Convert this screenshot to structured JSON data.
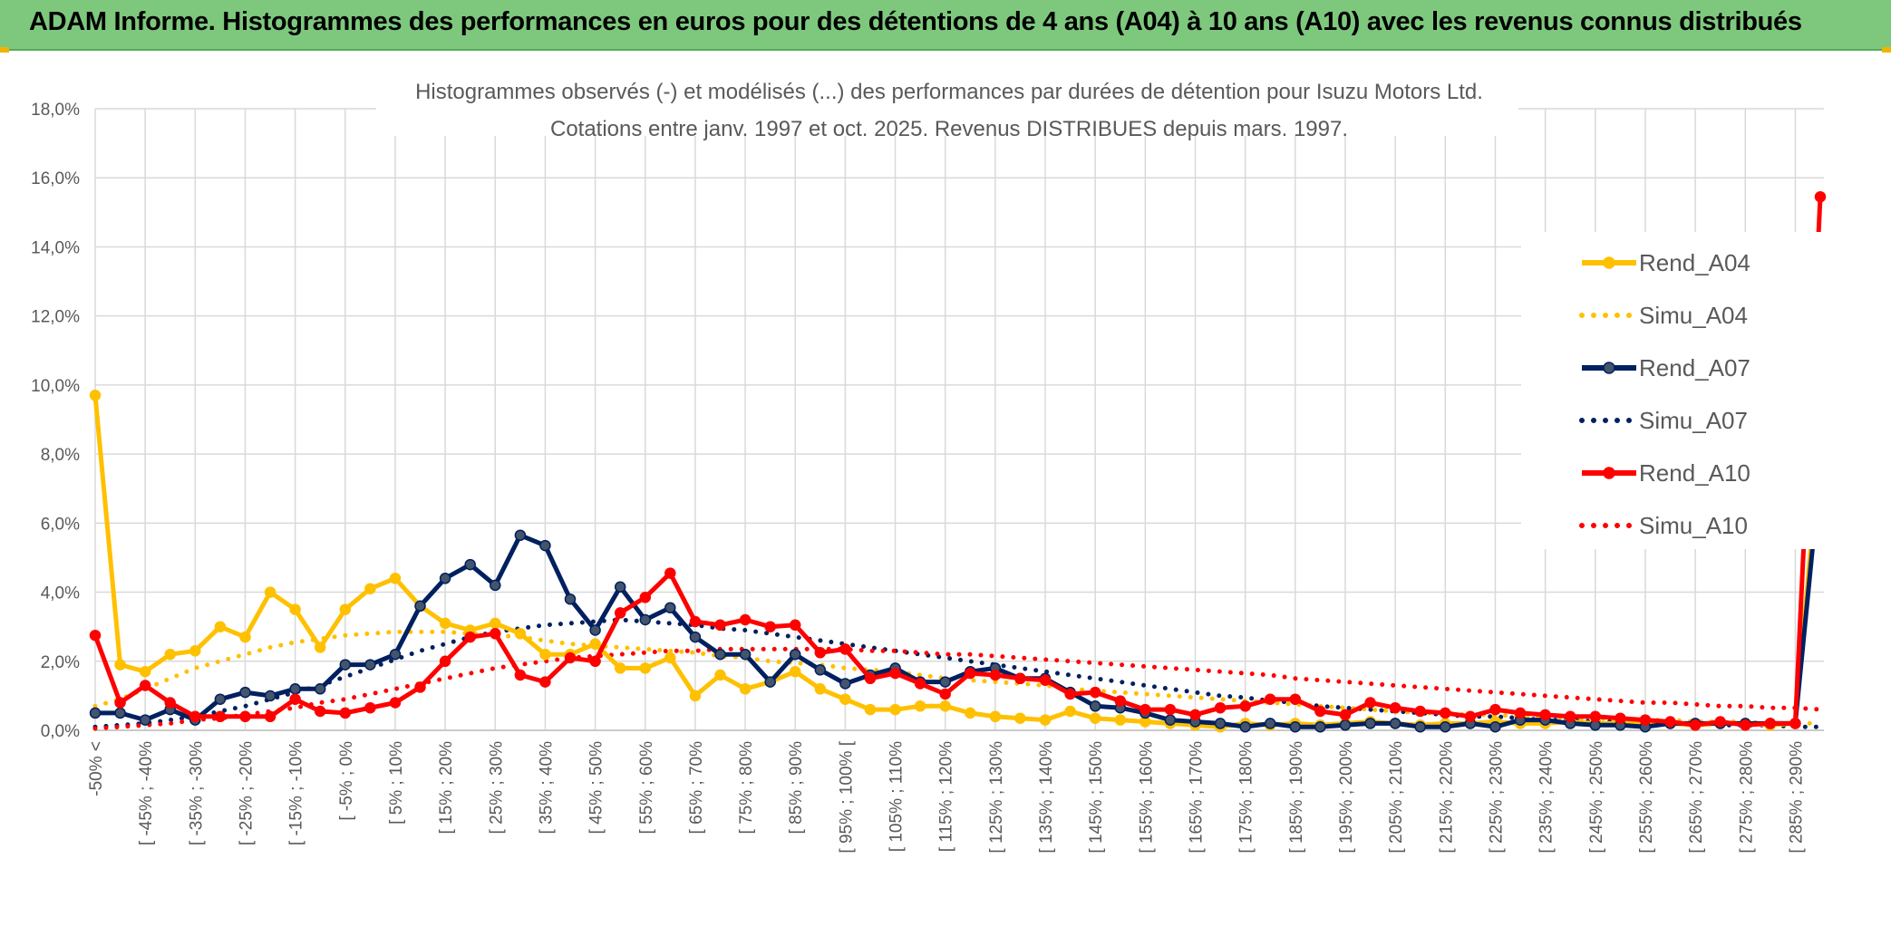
{
  "banner": {
    "title": "ADAM Informe. Histogrammes des performances en euros pour des détentions de 4 ans (A04) à 10 ans (A10) avec les revenus connus distribués"
  },
  "chart_data": {
    "type": "line",
    "title": "Histogrammes observés (-) et modélisés (...) des performances par durées de détention pour Isuzu Motors Ltd.",
    "subtitle": "Cotations entre janv. 1997 et oct. 2025. Revenus DISTRIBUES depuis mars. 1997.",
    "xlabel": "",
    "ylabel": "",
    "ylim": [
      0,
      18
    ],
    "grid": true,
    "legend_position": "right",
    "y_ticks": [
      "0,0%",
      "2,0%",
      "4,0%",
      "6,0%",
      "8,0%",
      "10,0%",
      "12,0%",
      "14,0%",
      "16,0%",
      "18,0%"
    ],
    "x_tick_labels": [
      "-50% <",
      "[ -45% ; -40%",
      "[ -35% ; -30%",
      "[ -25% ; -20%",
      "[ -15% ; -10%",
      "[ -5% ; 0%",
      "[ 5% ; 10%",
      "[ 15% ; 20%",
      "[ 25% ; 30%",
      "[ 35% ; 40%",
      "[ 45% ; 50%",
      "[ 55% ; 60%",
      "[ 65% ; 70%",
      "[ 75% ; 80%",
      "[ 85% ; 90%",
      "[ 95% ; 100% [",
      "[ 105% ; 110%",
      "[ 115% ; 120%",
      "[ 125% ; 130%",
      "[ 135% ; 140%",
      "[ 145% ; 150%",
      "[ 155% ; 160%",
      "[ 165% ; 170%",
      "[ 175% ; 180%",
      "[ 185% ; 190%",
      "[ 195% ; 200%",
      "[ 205% ; 210%",
      "[ 215% ; 220%",
      "[ 225% ; 230%",
      "[ 235% ; 240%",
      "[ 245% ; 250%",
      "[ 255% ; 260%",
      "[ 265% ; 270%",
      "[ 275% ; 280%",
      "[ 285% ; 290%"
    ],
    "n_points": 70,
    "series": [
      {
        "name": "Rend_A04",
        "style": "solid",
        "color": "#ffc000",
        "values": [
          9.7,
          1.9,
          1.7,
          2.2,
          2.3,
          3.0,
          2.7,
          4.0,
          3.5,
          2.4,
          3.5,
          4.1,
          4.4,
          3.6,
          3.1,
          2.9,
          3.1,
          2.8,
          2.2,
          2.2,
          2.5,
          1.8,
          1.8,
          2.1,
          1.0,
          1.6,
          1.2,
          1.4,
          1.7,
          1.2,
          0.9,
          0.6,
          0.6,
          0.7,
          0.7,
          0.5,
          0.4,
          0.35,
          0.3,
          0.55,
          0.35,
          0.3,
          0.25,
          0.2,
          0.15,
          0.1,
          0.2,
          0.15,
          0.2,
          0.15,
          0.2,
          0.25,
          0.2,
          0.15,
          0.2,
          0.2,
          0.25,
          0.2,
          0.2,
          0.25,
          0.2,
          0.2,
          0.2,
          0.2,
          0.15,
          0.2,
          0.2,
          0.15,
          0.2,
          8.4
        ]
      },
      {
        "name": "Simu_A04",
        "style": "dotted",
        "color": "#ffc000",
        "values": [
          0.7,
          0.9,
          1.2,
          1.5,
          1.8,
          2.0,
          2.2,
          2.4,
          2.55,
          2.65,
          2.75,
          2.8,
          2.85,
          2.85,
          2.85,
          2.8,
          2.75,
          2.7,
          2.6,
          2.5,
          2.45,
          2.4,
          2.35,
          2.3,
          2.25,
          2.15,
          2.1,
          2.0,
          1.95,
          1.9,
          1.8,
          1.75,
          1.7,
          1.6,
          1.5,
          1.45,
          1.4,
          1.35,
          1.3,
          1.2,
          1.15,
          1.1,
          1.05,
          1.0,
          0.95,
          0.9,
          0.85,
          0.8,
          0.75,
          0.7,
          0.65,
          0.6,
          0.55,
          0.5,
          0.5,
          0.45,
          0.45,
          0.4,
          0.4,
          0.35,
          0.35,
          0.3,
          0.3,
          0.3,
          0.25,
          0.25,
          0.25,
          0.2,
          0.2,
          0.2
        ]
      },
      {
        "name": "Rend_A07",
        "style": "solid",
        "color": "#002060",
        "values": [
          0.5,
          0.5,
          0.3,
          0.6,
          0.3,
          0.9,
          1.1,
          1.0,
          1.2,
          1.2,
          1.9,
          1.9,
          2.2,
          3.6,
          4.4,
          4.8,
          4.2,
          5.65,
          5.35,
          3.8,
          2.9,
          4.15,
          3.2,
          3.55,
          2.7,
          2.2,
          2.2,
          1.4,
          2.2,
          1.75,
          1.35,
          1.6,
          1.8,
          1.4,
          1.4,
          1.7,
          1.8,
          1.5,
          1.5,
          1.1,
          0.7,
          0.65,
          0.5,
          0.3,
          0.25,
          0.2,
          0.1,
          0.2,
          0.1,
          0.1,
          0.15,
          0.2,
          0.2,
          0.1,
          0.1,
          0.2,
          0.1,
          0.3,
          0.3,
          0.2,
          0.15,
          0.15,
          0.1,
          0.2,
          0.2,
          0.2,
          0.2,
          0.2,
          0.2,
          7.55
        ]
      },
      {
        "name": "Simu_A07",
        "style": "dotted",
        "color": "#002060",
        "values": [
          0.1,
          0.15,
          0.2,
          0.3,
          0.4,
          0.55,
          0.7,
          0.9,
          1.1,
          1.3,
          1.55,
          1.8,
          2.05,
          2.3,
          2.5,
          2.7,
          2.85,
          2.95,
          3.05,
          3.1,
          3.15,
          3.2,
          3.15,
          3.1,
          3.05,
          2.95,
          2.9,
          2.8,
          2.7,
          2.6,
          2.5,
          2.4,
          2.3,
          2.2,
          2.1,
          2.0,
          1.9,
          1.8,
          1.7,
          1.6,
          1.5,
          1.4,
          1.3,
          1.2,
          1.1,
          1.0,
          0.95,
          0.85,
          0.8,
          0.7,
          0.65,
          0.6,
          0.55,
          0.5,
          0.45,
          0.4,
          0.4,
          0.35,
          0.3,
          0.3,
          0.25,
          0.25,
          0.2,
          0.2,
          0.2,
          0.15,
          0.15,
          0.15,
          0.1,
          0.1
        ]
      },
      {
        "name": "Rend_A10",
        "style": "solid",
        "color": "#ff0000",
        "values": [
          2.75,
          0.8,
          1.3,
          0.8,
          0.4,
          0.4,
          0.4,
          0.4,
          0.9,
          0.55,
          0.5,
          0.65,
          0.8,
          1.25,
          2.0,
          2.7,
          2.8,
          1.6,
          1.4,
          2.1,
          2.0,
          3.4,
          3.85,
          4.55,
          3.15,
          3.05,
          3.2,
          3.0,
          3.05,
          2.25,
          2.35,
          1.5,
          1.65,
          1.35,
          1.05,
          1.65,
          1.6,
          1.5,
          1.45,
          1.05,
          1.1,
          0.85,
          0.6,
          0.6,
          0.45,
          0.65,
          0.7,
          0.9,
          0.9,
          0.55,
          0.45,
          0.8,
          0.65,
          0.55,
          0.5,
          0.4,
          0.6,
          0.5,
          0.45,
          0.4,
          0.4,
          0.35,
          0.3,
          0.25,
          0.15,
          0.25,
          0.15,
          0.2,
          0.2,
          15.45
        ]
      },
      {
        "name": "Simu_A10",
        "style": "dotted",
        "color": "#ff0000",
        "values": [
          0.05,
          0.1,
          0.15,
          0.2,
          0.3,
          0.35,
          0.45,
          0.55,
          0.65,
          0.8,
          0.9,
          1.05,
          1.2,
          1.35,
          1.5,
          1.65,
          1.8,
          1.9,
          2.0,
          2.1,
          2.15,
          2.2,
          2.25,
          2.3,
          2.3,
          2.35,
          2.35,
          2.35,
          2.35,
          2.35,
          2.35,
          2.3,
          2.3,
          2.25,
          2.2,
          2.2,
          2.15,
          2.1,
          2.05,
          2.0,
          1.95,
          1.9,
          1.85,
          1.8,
          1.75,
          1.7,
          1.65,
          1.6,
          1.5,
          1.45,
          1.4,
          1.35,
          1.3,
          1.25,
          1.2,
          1.15,
          1.1,
          1.05,
          1.0,
          0.95,
          0.9,
          0.85,
          0.8,
          0.8,
          0.75,
          0.7,
          0.7,
          0.65,
          0.65,
          0.6
        ]
      }
    ]
  }
}
